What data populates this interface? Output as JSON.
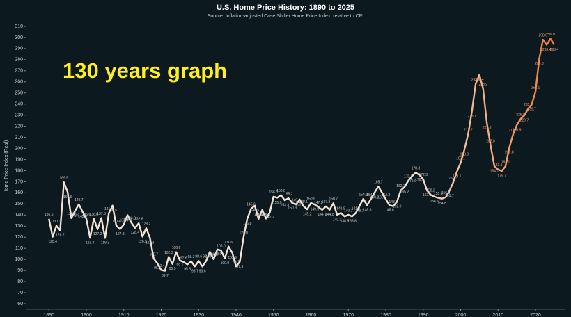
{
  "chart_data": {
    "type": "line",
    "title": "U.S. Home Price History: 1890 to 2025",
    "subtitle": "Source: Inflation-adjusted Case Shiller Home Price Index, relative to CPI",
    "y_label": "Home Price Index (Real)",
    "annotation": "130 years graph",
    "xlim": [
      1884,
      2028
    ],
    "ylim": [
      55,
      315
    ],
    "xticks": [
      1890,
      1900,
      1910,
      1920,
      1930,
      1940,
      1950,
      1960,
      1970,
      1980,
      1990,
      2000,
      2010,
      2020
    ],
    "yticks": [
      60,
      70,
      80,
      90,
      100,
      110,
      120,
      130,
      140,
      150,
      160,
      170,
      180,
      190,
      200,
      210,
      220,
      230,
      240,
      250,
      260,
      270,
      280,
      290,
      300,
      310
    ],
    "reference_line": 153.6,
    "gradient_colors": [
      "#f3e4d6",
      "#ee7a3e"
    ],
    "x": [
      1890,
      1891,
      1892,
      1893,
      1894,
      1895,
      1896,
      1897,
      1898,
      1899,
      1900,
      1901,
      1902,
      1903,
      1904,
      1905,
      1906,
      1907,
      1908,
      1909,
      1910,
      1911,
      1912,
      1913,
      1914,
      1915,
      1916,
      1917,
      1918,
      1919,
      1920,
      1921,
      1922,
      1923,
      1924,
      1925,
      1926,
      1927,
      1928,
      1929,
      1930,
      1931,
      1932,
      1933,
      1934,
      1935,
      1936,
      1937,
      1938,
      1939,
      1940,
      1941,
      1942,
      1943,
      1944,
      1945,
      1946,
      1947,
      1948,
      1949,
      1950,
      1951,
      1952,
      1953,
      1954,
      1955,
      1956,
      1957,
      1958,
      1959,
      1960,
      1961,
      1962,
      1963,
      1964,
      1965,
      1966,
      1967,
      1968,
      1969,
      1970,
      1971,
      1972,
      1973,
      1974,
      1975,
      1976,
      1977,
      1978,
      1979,
      1980,
      1981,
      1982,
      1983,
      1984,
      1985,
      1986,
      1987,
      1988,
      1989,
      1990,
      1991,
      1992,
      1993,
      1994,
      1995,
      1996,
      1997,
      1998,
      1999,
      2000,
      2001,
      2002,
      2003,
      2004,
      2005,
      2006,
      2007,
      2008,
      2009,
      2010,
      2011,
      2012,
      2013,
      2014,
      2015,
      2016,
      2017,
      2018,
      2019,
      2020,
      2021,
      2022,
      2023,
      2024,
      2025
    ],
    "values": [
      136.6,
      120.4,
      130.3,
      126.2,
      169.5,
      160.6,
      137.2,
      143.9,
      149.7,
      142.9,
      136.6,
      119.4,
      136.6,
      127.2,
      137.3,
      119.3,
      141.6,
      148.5,
      130.4,
      127.3,
      131.4,
      140.0,
      133.3,
      128.4,
      132.6,
      120.5,
      128.2,
      119.3,
      100.7,
      96.4,
      90.4,
      89.7,
      102.3,
      95.9,
      106.6,
      99.1,
      97.6,
      95.5,
      98.3,
      93.7,
      98.6,
      93.6,
      98.6,
      106.9,
      100.2,
      109.0,
      108.0,
      100.9,
      111.6,
      105.9,
      93.7,
      97.9,
      120.0,
      136.8,
      145.6,
      148.5,
      136.5,
      144.6,
      136.8,
      142.2,
      156.6,
      155.6,
      158.0,
      153.3,
      155.2,
      150.9,
      149.5,
      153.9,
      148.1,
      145.2,
      150.9,
      149.5,
      147.2,
      144.7,
      147.8,
      144.8,
      150.7,
      140.2,
      141.9,
      138.8,
      140.2,
      138.8,
      141.9,
      148.3,
      154.6,
      148.8,
      154.3,
      160.2,
      165.7,
      160.2,
      154.3,
      148.8,
      148.0,
      152.0,
      162.3,
      165.2,
      170.8,
      175.0,
      178.3,
      176.0,
      172.3,
      162.2,
      158.2,
      156.6,
      155.5,
      154.8,
      156.0,
      161.7,
      169.3,
      179.1,
      187.1,
      198.9,
      212.7,
      233.1,
      257.8,
      266.4,
      253.9,
      223.0,
      202.8,
      184.1,
      181.1,
      179.7,
      184.1,
      200.8,
      212.5,
      220.9,
      226.5,
      229.7,
      235.5,
      239.7,
      251.1,
      280.8,
      298.0,
      293.4,
      299.0,
      293.4
    ],
    "value_labels": [
      "136.6",
      "120.4",
      "130.3",
      "126.2",
      "169.5",
      "160.6",
      "137.2",
      "143.9",
      "149.7",
      "142.9",
      "136.6",
      "119.4",
      "136.6",
      "127.2",
      "137.3",
      "119.3",
      "141.6",
      "148.5",
      "130.4",
      "127.3",
      "131.4",
      "140.0",
      "133.3",
      "128.4",
      "132.6",
      "120.5",
      "128.2",
      "119.3",
      "100.7",
      "96.4",
      "90.4",
      "89.7",
      "102.3",
      "95.9",
      "106.6",
      "99.1",
      "97.6",
      "95.5",
      "98.3",
      "93.7",
      "98.6",
      "93.6",
      "98.6",
      "106.9",
      "100.2",
      "109.0",
      "108.0",
      "100.9",
      "111.6",
      "105.9",
      "93.7",
      "97.9",
      "120.0",
      "136.8",
      "145.6",
      "148.5",
      "136.5",
      "144.6",
      "136.8",
      "142.2",
      "156.6",
      "155.6",
      "158.0",
      "153.3",
      "155.2",
      "150.9",
      "149.5",
      "153.9",
      "148.1",
      "145.2",
      "150.9",
      "149.5",
      "147.2",
      "144.7",
      "147.8",
      "144.8",
      "150.7",
      "140.2",
      "141.9",
      "138.8",
      "140.2",
      "138.8",
      "141.9",
      "148.3",
      "154.6",
      "148.8",
      "154.3",
      "160.2",
      "165.7",
      "160.2",
      "154.3",
      "148.8",
      "148.0",
      "152.0",
      "162.3",
      "165.2",
      "170.8",
      "175.0",
      "178.3",
      "176.0",
      "172.3",
      "162.2",
      "158.2",
      "156.6",
      "155.5",
      "154.8",
      "156.0",
      "161.7",
      "169.3",
      "179.1",
      "187.1",
      "198.9",
      "212.7",
      "233.1",
      "257.8",
      "266.4",
      "253.9",
      "223.0",
      "202.8",
      "184.1",
      "181.1",
      "179.7",
      "184.1",
      "200.8",
      "212.5",
      "220.9",
      "226.5",
      "229.7",
      "235.5",
      "239.7",
      "251.1",
      "280.8",
      "298.0",
      "293.4",
      "299.0",
      "293.4"
    ]
  }
}
